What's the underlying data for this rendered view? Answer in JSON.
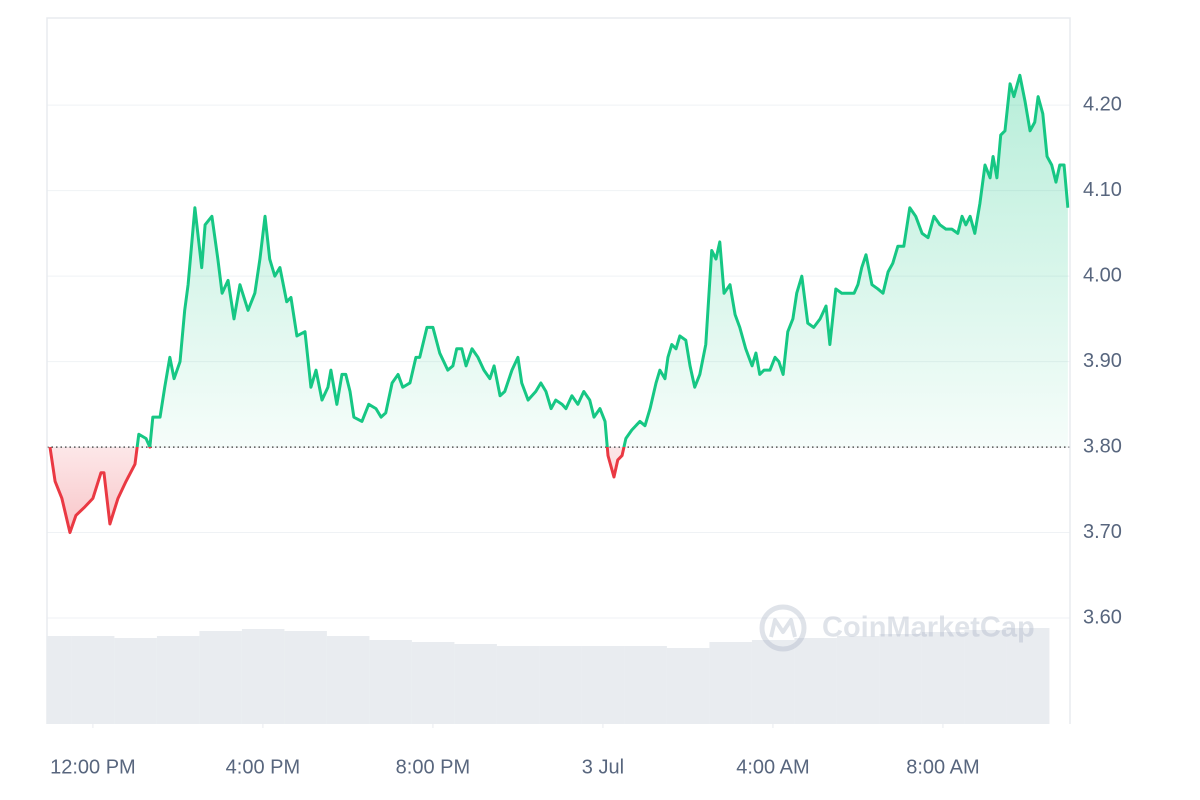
{
  "chart_data": {
    "type": "line",
    "color": "#16c784",
    "below_color": "#ea3943",
    "baseline": 3.8,
    "grid": true,
    "xlim": [
      -1.08,
      22.99
    ],
    "ylim": [
      3.476,
      4.302
    ],
    "yticks": [
      {
        "value": 3.6,
        "label": "3.60"
      },
      {
        "value": 3.7,
        "label": "3.70"
      },
      {
        "value": 3.8,
        "label": "3.80"
      },
      {
        "value": 3.9,
        "label": "3.90"
      },
      {
        "value": 4.0,
        "label": "4.00"
      },
      {
        "value": 4.1,
        "label": "4.10"
      },
      {
        "value": 4.2,
        "label": "4.20"
      }
    ],
    "xticks": [
      {
        "value": 0,
        "label": "12:00 PM"
      },
      {
        "value": 4,
        "label": "4:00 PM"
      },
      {
        "value": 8,
        "label": "8:00 PM"
      },
      {
        "value": 12,
        "label": "3 Jul"
      },
      {
        "value": 16,
        "label": "4:00 AM"
      },
      {
        "value": 20,
        "label": "8:00 AM"
      }
    ],
    "x": [
      -1.01,
      -0.89,
      -0.73,
      -0.54,
      -0.4,
      -0.19,
      0,
      0.19,
      0.26,
      0.4,
      0.59,
      0.78,
      0.99,
      1.08,
      1.25,
      1.34,
      1.41,
      1.58,
      1.69,
      1.81,
      1.91,
      2.05,
      2.16,
      2.24,
      2.4,
      2.56,
      2.64,
      2.8,
      2.94,
      3.04,
      3.18,
      3.32,
      3.46,
      3.65,
      3.81,
      3.93,
      4.05,
      4.16,
      4.28,
      4.4,
      4.56,
      4.66,
      4.8,
      4.99,
      5.13,
      5.25,
      5.39,
      5.53,
      5.6,
      5.74,
      5.86,
      5.95,
      6.05,
      6.14,
      6.33,
      6.49,
      6.66,
      6.78,
      6.89,
      7.04,
      7.18,
      7.29,
      7.46,
      7.6,
      7.69,
      7.86,
      8.0,
      8.16,
      8.35,
      8.47,
      8.56,
      8.68,
      8.78,
      8.92,
      9.06,
      9.2,
      9.34,
      9.44,
      9.58,
      9.69,
      9.86,
      10.0,
      10.09,
      10.24,
      10.42,
      10.54,
      10.66,
      10.78,
      10.89,
      11.04,
      11.13,
      11.27,
      11.41,
      11.55,
      11.69,
      11.79,
      11.93,
      12.05,
      12.12,
      12.26,
      12.35,
      12.45,
      12.54,
      12.68,
      12.87,
      12.99,
      13.11,
      13.25,
      13.34,
      13.46,
      13.53,
      13.62,
      13.72,
      13.81,
      13.95,
      14.05,
      14.16,
      14.28,
      14.42,
      14.56,
      14.66,
      14.75,
      14.85,
      14.99,
      15.11,
      15.22,
      15.36,
      15.51,
      15.6,
      15.69,
      15.79,
      15.93,
      16.05,
      16.14,
      16.24,
      16.35,
      16.47,
      16.56,
      16.68,
      16.82,
      16.96,
      17.11,
      17.25,
      17.34,
      17.48,
      17.62,
      17.76,
      17.91,
      18.0,
      18.09,
      18.19,
      18.33,
      18.47,
      18.59,
      18.71,
      18.82,
      18.94,
      19.08,
      19.22,
      19.36,
      19.51,
      19.65,
      19.79,
      19.93,
      20.07,
      20.21,
      20.35,
      20.45,
      20.54,
      20.64,
      20.75,
      20.87,
      20.99,
      21.11,
      21.18,
      21.27,
      21.36,
      21.46,
      21.58,
      21.67,
      21.81,
      21.93,
      22.05,
      22.16,
      22.24,
      22.35,
      22.45,
      22.56,
      22.66,
      22.75,
      22.85,
      22.94
    ],
    "values": [
      3.8,
      3.76,
      3.74,
      3.7,
      3.72,
      3.73,
      3.74,
      3.77,
      3.77,
      3.71,
      3.74,
      3.76,
      3.78,
      3.815,
      3.81,
      3.8,
      3.835,
      3.835,
      3.87,
      3.905,
      3.88,
      3.9,
      3.96,
      3.99,
      4.08,
      4.01,
      4.06,
      4.07,
      4.02,
      3.98,
      3.995,
      3.95,
      3.99,
      3.96,
      3.98,
      4.02,
      4.07,
      4.02,
      4.0,
      4.01,
      3.97,
      3.975,
      3.93,
      3.935,
      3.87,
      3.89,
      3.855,
      3.87,
      3.89,
      3.85,
      3.885,
      3.885,
      3.865,
      3.835,
      3.83,
      3.85,
      3.845,
      3.835,
      3.84,
      3.875,
      3.885,
      3.87,
      3.875,
      3.905,
      3.905,
      3.94,
      3.94,
      3.91,
      3.89,
      3.895,
      3.915,
      3.915,
      3.895,
      3.915,
      3.905,
      3.89,
      3.88,
      3.895,
      3.86,
      3.865,
      3.89,
      3.905,
      3.875,
      3.855,
      3.865,
      3.875,
      3.865,
      3.845,
      3.855,
      3.85,
      3.845,
      3.86,
      3.85,
      3.865,
      3.855,
      3.835,
      3.845,
      3.83,
      3.79,
      3.765,
      3.785,
      3.79,
      3.81,
      3.82,
      3.83,
      3.825,
      3.845,
      3.875,
      3.89,
      3.88,
      3.905,
      3.92,
      3.915,
      3.93,
      3.925,
      3.895,
      3.87,
      3.885,
      3.92,
      4.03,
      4.02,
      4.04,
      3.98,
      3.99,
      3.955,
      3.94,
      3.915,
      3.895,
      3.91,
      3.885,
      3.89,
      3.89,
      3.905,
      3.9,
      3.885,
      3.935,
      3.95,
      3.98,
      4.0,
      3.945,
      3.94,
      3.95,
      3.965,
      3.92,
      3.985,
      3.98,
      3.98,
      3.98,
      3.99,
      4.01,
      4.025,
      3.99,
      3.985,
      3.98,
      4.005,
      4.015,
      4.035,
      4.035,
      4.08,
      4.07,
      4.05,
      4.045,
      4.07,
      4.06,
      4.055,
      4.055,
      4.05,
      4.07,
      4.06,
      4.07,
      4.05,
      4.085,
      4.13,
      4.115,
      4.14,
      4.115,
      4.165,
      4.17,
      4.225,
      4.21,
      4.235,
      4.205,
      4.17,
      4.18,
      4.21,
      4.19,
      4.14,
      4.13,
      4.11,
      4.13,
      4.13,
      4.08
    ],
    "volume": {
      "color": "#e9ecf0",
      "x": [
        -1,
        0,
        1,
        2,
        3,
        4,
        5,
        6,
        7,
        8,
        9,
        10,
        11,
        12,
        13,
        14,
        15,
        16,
        17,
        18,
        19,
        20,
        21,
        22
      ],
      "values": [
        88,
        88,
        86,
        88,
        93,
        95,
        93,
        88,
        84,
        82,
        80,
        78,
        78,
        78,
        78,
        76,
        82,
        84,
        86,
        88,
        90,
        92,
        94,
        96
      ]
    },
    "watermark": "CoinMarketCap"
  }
}
